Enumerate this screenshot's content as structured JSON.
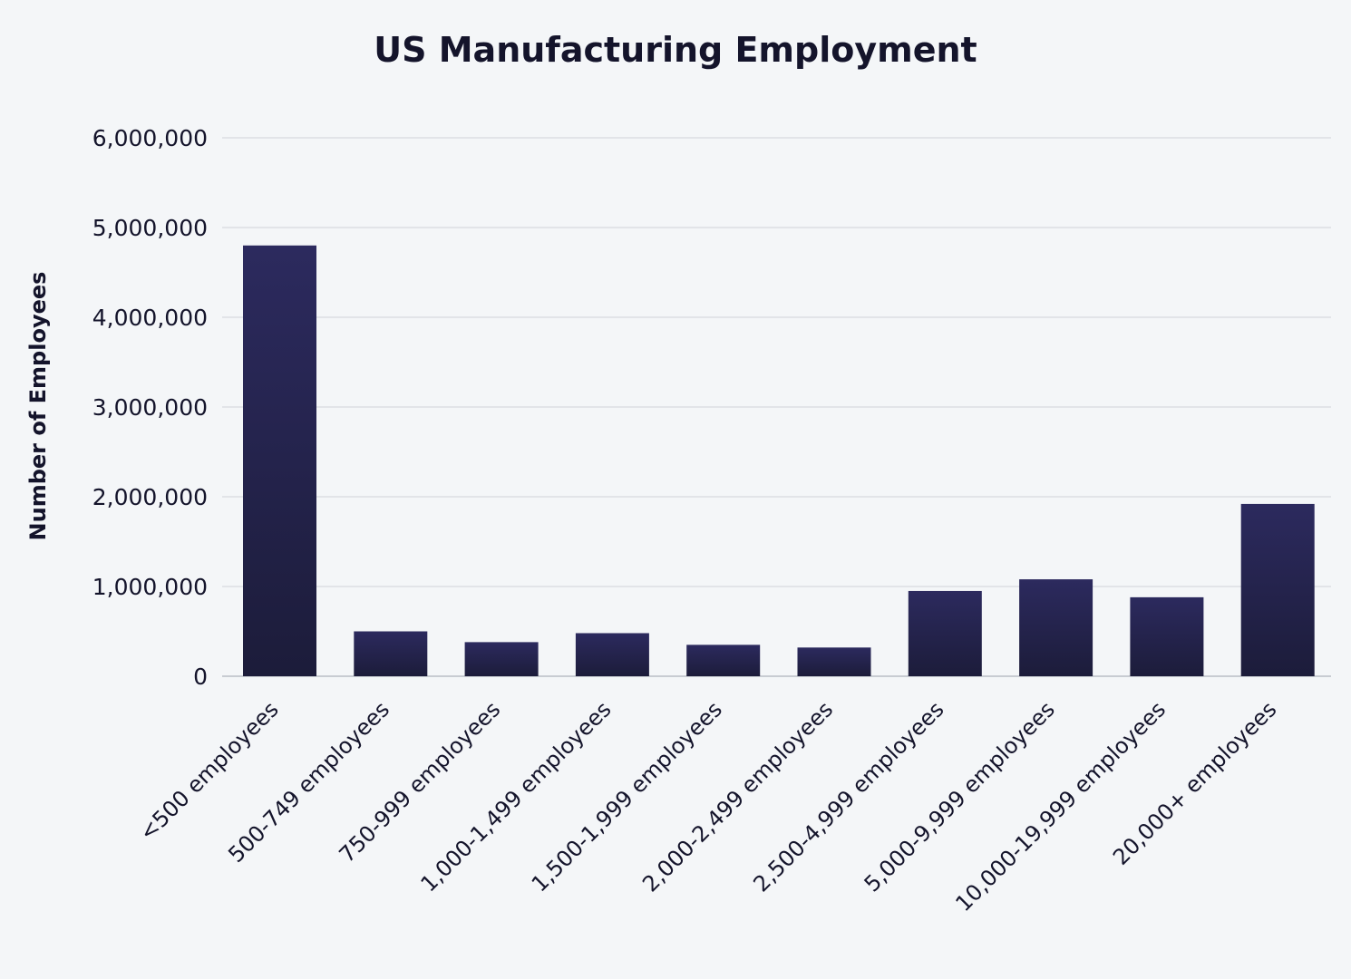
{
  "chart_data": {
    "type": "bar",
    "title": "US Manufacturing Employment",
    "xlabel": "",
    "ylabel": "Number of Employees",
    "categories": [
      "<500 employees",
      "500-749 employees",
      "750-999 employees",
      "1,000-1,499 employees",
      "1,500-1,999 employees",
      "2,000-2,499 employees",
      "2,500-4,999 employees",
      "5,000-9,999 employees",
      "10,000-19,999 employees",
      "20,000+ employees"
    ],
    "values": [
      4800000,
      500000,
      380000,
      480000,
      350000,
      320000,
      950000,
      1080000,
      880000,
      1920000
    ],
    "ylim": [
      0,
      6000000
    ],
    "yticks": [
      0,
      1000000,
      2000000,
      3000000,
      4000000,
      5000000,
      6000000
    ],
    "ytick_labels": [
      "0",
      "1,000,000",
      "2,000,000",
      "3,000,000",
      "4,000,000",
      "5,000,000",
      "6,000,000"
    ],
    "grid": true,
    "legend": "none",
    "bar_color_top": "#2c2a5e",
    "bar_color_bottom": "#1c1c3a"
  }
}
